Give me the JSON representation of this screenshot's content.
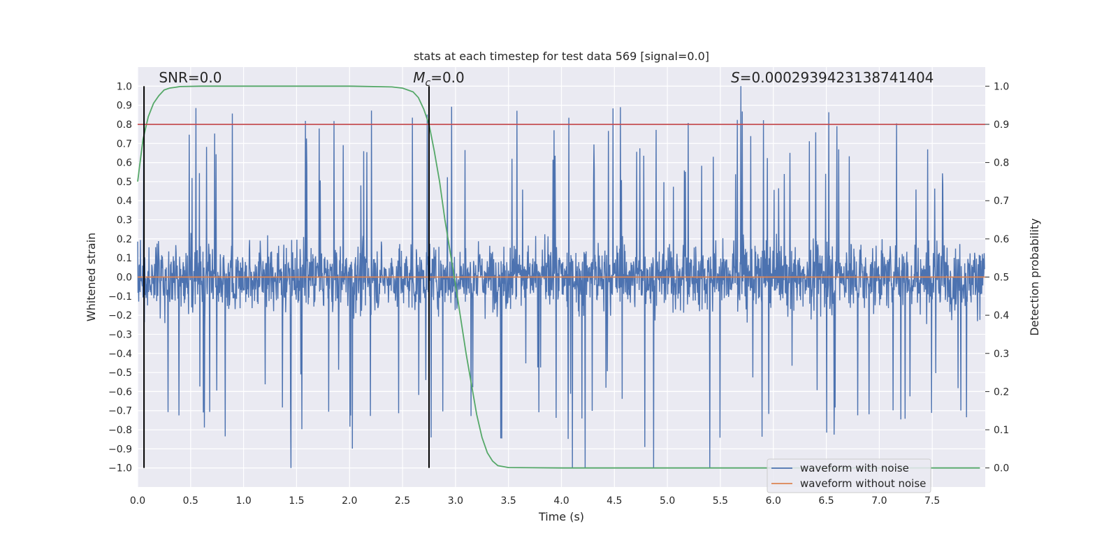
{
  "chart_data": {
    "type": "line",
    "title": "stats at each timestep for test data 569 [signal=0.0]",
    "xlabel": "Time (s)",
    "ylabel": "Whitened strain",
    "y2label": "Detection probability",
    "xlim": [
      0.0,
      8.0
    ],
    "ylim": [
      -1.1,
      1.1
    ],
    "y2lim": [
      -0.05,
      1.05
    ],
    "x_ticks": [
      0.0,
      0.5,
      1.0,
      1.5,
      2.0,
      2.5,
      3.0,
      3.5,
      4.0,
      4.5,
      5.0,
      5.5,
      6.0,
      6.5,
      7.0,
      7.5
    ],
    "x_tick_labels": [
      "0.0",
      "0.5",
      "1.0",
      "1.5",
      "2.0",
      "2.5",
      "3.0",
      "3.5",
      "4.0",
      "4.5",
      "5.0",
      "5.5",
      "6.0",
      "6.5",
      "7.0",
      "7.5"
    ],
    "y_ticks": [
      -1.0,
      -0.9,
      -0.8,
      -0.7,
      -0.6,
      -0.5,
      -0.4,
      -0.3,
      -0.2,
      -0.1,
      0.0,
      0.1,
      0.2,
      0.3,
      0.4,
      0.5,
      0.6,
      0.7,
      0.8,
      0.9,
      1.0
    ],
    "y_tick_labels": [
      "−1.0",
      "−0.9",
      "−0.8",
      "−0.7",
      "−0.6",
      "−0.5",
      "−0.4",
      "−0.3",
      "−0.2",
      "−0.1",
      "0.0",
      "0.1",
      "0.2",
      "0.3",
      "0.4",
      "0.5",
      "0.6",
      "0.7",
      "0.8",
      "0.9",
      "1.0"
    ],
    "y2_ticks": [
      0.0,
      0.1,
      0.2,
      0.3,
      0.4,
      0.5,
      0.6,
      0.7,
      0.8,
      0.9,
      1.0
    ],
    "y2_tick_labels": [
      "0.0",
      "0.1",
      "0.2",
      "0.3",
      "0.4",
      "0.5",
      "0.6",
      "0.7",
      "0.8",
      "0.9",
      "1.0"
    ],
    "grid": true,
    "series": [
      {
        "name": "waveform with noise",
        "axis": "left",
        "color": "#4c72b0",
        "kind": "noise",
        "amplitude_typical": 0.4,
        "amplitude_peak": 1.0
      },
      {
        "name": "waveform without noise",
        "axis": "left",
        "color": "#dd8452",
        "x": [
          0.0,
          8.0
        ],
        "y": [
          0.0,
          0.0
        ]
      },
      {
        "name": "Detection probability",
        "axis": "right",
        "color": "#55a868",
        "x": [
          0.0,
          0.05,
          0.1,
          0.15,
          0.2,
          0.25,
          0.3,
          0.4,
          0.6,
          1.0,
          2.0,
          2.4,
          2.5,
          2.6,
          2.65,
          2.7,
          2.75,
          2.8,
          2.85,
          2.9,
          3.0,
          3.1,
          3.2,
          3.25,
          3.3,
          3.35,
          3.4,
          3.5,
          4.0,
          5.0,
          6.0,
          7.0,
          7.95
        ],
        "y": [
          0.75,
          0.86,
          0.92,
          0.955,
          0.975,
          0.99,
          0.995,
          0.999,
          1.0,
          1.0,
          1.0,
          0.998,
          0.995,
          0.985,
          0.97,
          0.94,
          0.9,
          0.83,
          0.75,
          0.65,
          0.48,
          0.3,
          0.14,
          0.08,
          0.04,
          0.018,
          0.006,
          0.001,
          0.0,
          0.0,
          0.0,
          0.0,
          0.0
        ]
      },
      {
        "name": "threshold",
        "axis": "right",
        "color": "#c44e52",
        "x": [
          0.0,
          8.0
        ],
        "y": [
          0.9,
          0.9
        ]
      }
    ],
    "vlines": [
      {
        "x": 0.06,
        "ymin": -1.0,
        "ymax": 1.0,
        "color": "#000000"
      },
      {
        "x": 2.75,
        "ymin": -1.0,
        "ymax": 1.0,
        "color": "#000000"
      }
    ],
    "annotations": [
      {
        "text": "SNR=0.0",
        "x": 0.2,
        "y": 1.02
      },
      {
        "text": "M_c=0.0",
        "x": 2.6,
        "y": 1.02
      },
      {
        "text": "S=0.0002939423138741404",
        "x": 5.6,
        "y": 1.02
      }
    ],
    "legend": {
      "location": "lower-right",
      "entries": [
        "waveform with noise",
        "waveform without noise"
      ]
    }
  }
}
